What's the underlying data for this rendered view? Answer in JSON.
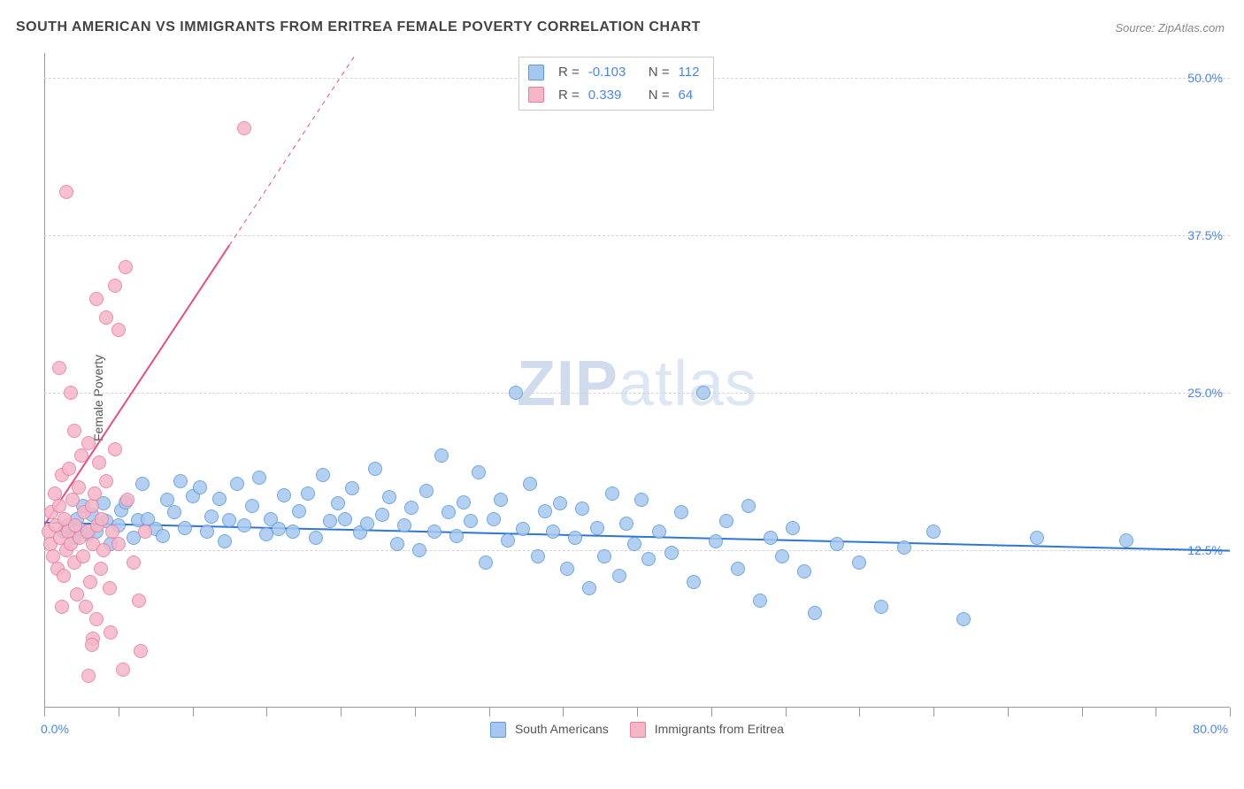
{
  "title": "SOUTH AMERICAN VS IMMIGRANTS FROM ERITREA FEMALE POVERTY CORRELATION CHART",
  "source": "Source: ZipAtlas.com",
  "ylabel": "Female Poverty",
  "watermark_zip": "ZIP",
  "watermark_atlas": "atlas",
  "chart": {
    "type": "scatter",
    "xlim": [
      0,
      80
    ],
    "ylim": [
      0,
      52
    ],
    "x_ticks": [
      0,
      5,
      10,
      15,
      20,
      25,
      30,
      35,
      40,
      45,
      50,
      55,
      60,
      65,
      70,
      75,
      80
    ],
    "y_gridlines": [
      12.5,
      25.0,
      37.5,
      50.0
    ],
    "y_tick_labels": [
      "12.5%",
      "25.0%",
      "37.5%",
      "50.0%"
    ],
    "x_min_label": "0.0%",
    "x_max_label": "80.0%",
    "background_color": "#ffffff",
    "grid_color": "#d5d5d5",
    "axis_color": "#999999",
    "tick_label_color": "#4a86e8",
    "marker_radius": 8,
    "marker_fill_opacity": 0.35,
    "series": [
      {
        "id": "south_americans",
        "label": "South Americans",
        "color_fill": "#a6c8f0",
        "color_stroke": "#5b9bd5",
        "trend": {
          "slope": -0.028,
          "intercept": 14.7,
          "color": "#2e75d6",
          "width": 2
        },
        "stats": {
          "R": "-0.103",
          "N": "112"
        },
        "points": [
          [
            1.3,
            14.0
          ],
          [
            1.6,
            14.5
          ],
          [
            2.0,
            13.5
          ],
          [
            2.2,
            15.0
          ],
          [
            2.4,
            14.2
          ],
          [
            2.6,
            16.0
          ],
          [
            3.0,
            13.8
          ],
          [
            3.2,
            15.3
          ],
          [
            3.5,
            14.0
          ],
          [
            4.0,
            16.2
          ],
          [
            4.2,
            14.8
          ],
          [
            4.5,
            13.0
          ],
          [
            5.0,
            14.5
          ],
          [
            5.2,
            15.7
          ],
          [
            5.5,
            16.3
          ],
          [
            6.0,
            13.5
          ],
          [
            6.3,
            14.9
          ],
          [
            6.6,
            17.8
          ],
          [
            7.0,
            15.0
          ],
          [
            7.5,
            14.2
          ],
          [
            8.0,
            13.6
          ],
          [
            8.3,
            16.5
          ],
          [
            8.8,
            15.5
          ],
          [
            9.2,
            18.0
          ],
          [
            9.5,
            14.3
          ],
          [
            10.0,
            16.8
          ],
          [
            10.5,
            17.5
          ],
          [
            11.0,
            14.0
          ],
          [
            11.3,
            15.2
          ],
          [
            11.8,
            16.6
          ],
          [
            12.2,
            13.2
          ],
          [
            12.5,
            14.9
          ],
          [
            13.0,
            17.8
          ],
          [
            13.5,
            14.5
          ],
          [
            14.0,
            16.0
          ],
          [
            14.5,
            18.3
          ],
          [
            15.0,
            13.8
          ],
          [
            15.3,
            15.0
          ],
          [
            15.8,
            14.2
          ],
          [
            16.2,
            16.9
          ],
          [
            16.8,
            14.0
          ],
          [
            17.2,
            15.6
          ],
          [
            17.8,
            17.0
          ],
          [
            18.3,
            13.5
          ],
          [
            18.8,
            18.5
          ],
          [
            19.3,
            14.8
          ],
          [
            19.8,
            16.2
          ],
          [
            20.3,
            15.0
          ],
          [
            20.8,
            17.4
          ],
          [
            21.3,
            13.9
          ],
          [
            21.8,
            14.6
          ],
          [
            22.3,
            19.0
          ],
          [
            22.8,
            15.3
          ],
          [
            23.3,
            16.7
          ],
          [
            23.8,
            13.0
          ],
          [
            24.3,
            14.5
          ],
          [
            24.8,
            15.9
          ],
          [
            25.3,
            12.5
          ],
          [
            25.8,
            17.2
          ],
          [
            26.3,
            14.0
          ],
          [
            26.8,
            20.0
          ],
          [
            27.3,
            15.5
          ],
          [
            27.8,
            13.6
          ],
          [
            28.3,
            16.3
          ],
          [
            28.8,
            14.8
          ],
          [
            29.3,
            18.7
          ],
          [
            29.8,
            11.5
          ],
          [
            30.3,
            15.0
          ],
          [
            30.8,
            16.5
          ],
          [
            31.3,
            13.3
          ],
          [
            31.8,
            25.0
          ],
          [
            32.3,
            14.2
          ],
          [
            32.8,
            17.8
          ],
          [
            33.3,
            12.0
          ],
          [
            33.8,
            15.6
          ],
          [
            34.3,
            14.0
          ],
          [
            34.8,
            16.2
          ],
          [
            35.3,
            11.0
          ],
          [
            35.8,
            13.5
          ],
          [
            36.3,
            15.8
          ],
          [
            36.8,
            9.5
          ],
          [
            37.3,
            14.3
          ],
          [
            37.8,
            12.0
          ],
          [
            38.3,
            17.0
          ],
          [
            38.8,
            10.5
          ],
          [
            39.3,
            14.6
          ],
          [
            39.8,
            13.0
          ],
          [
            40.3,
            16.5
          ],
          [
            40.8,
            11.8
          ],
          [
            41.5,
            14.0
          ],
          [
            42.3,
            12.3
          ],
          [
            43.0,
            15.5
          ],
          [
            43.8,
            10.0
          ],
          [
            44.5,
            25.0
          ],
          [
            45.3,
            13.2
          ],
          [
            46.0,
            14.8
          ],
          [
            46.8,
            11.0
          ],
          [
            47.5,
            16.0
          ],
          [
            48.3,
            8.5
          ],
          [
            49.0,
            13.5
          ],
          [
            49.8,
            12.0
          ],
          [
            50.5,
            14.3
          ],
          [
            51.3,
            10.8
          ],
          [
            52.0,
            7.5
          ],
          [
            53.5,
            13.0
          ],
          [
            55.0,
            11.5
          ],
          [
            56.5,
            8.0
          ],
          [
            58.0,
            12.7
          ],
          [
            60.0,
            14.0
          ],
          [
            62.0,
            7.0
          ],
          [
            67.0,
            13.5
          ],
          [
            73.0,
            13.3
          ]
        ]
      },
      {
        "id": "eritrea",
        "label": "Immigrants from Eritrea",
        "color_fill": "#f5b6c8",
        "color_stroke": "#e87ba0",
        "trend": {
          "slope": 1.78,
          "intercept": 14.5,
          "color": "#e84d84",
          "width": 2,
          "dash_after_x": 12.5
        },
        "stats": {
          "R": "0.339",
          "N": "64"
        },
        "points": [
          [
            0.3,
            14.0
          ],
          [
            0.4,
            13.0
          ],
          [
            0.5,
            15.5
          ],
          [
            0.6,
            12.0
          ],
          [
            0.7,
            17.0
          ],
          [
            0.8,
            14.5
          ],
          [
            0.9,
            11.0
          ],
          [
            1.0,
            16.0
          ],
          [
            1.1,
            13.5
          ],
          [
            1.2,
            18.5
          ],
          [
            1.3,
            10.5
          ],
          [
            1.4,
            15.0
          ],
          [
            1.5,
            12.5
          ],
          [
            1.6,
            14.0
          ],
          [
            1.7,
            19.0
          ],
          [
            1.8,
            13.0
          ],
          [
            1.9,
            16.5
          ],
          [
            2.0,
            11.5
          ],
          [
            2.1,
            14.5
          ],
          [
            2.2,
            9.0
          ],
          [
            2.3,
            17.5
          ],
          [
            2.4,
            13.5
          ],
          [
            2.5,
            20.0
          ],
          [
            2.6,
            12.0
          ],
          [
            2.7,
            15.5
          ],
          [
            2.8,
            8.0
          ],
          [
            2.9,
            14.0
          ],
          [
            3.0,
            21.0
          ],
          [
            3.1,
            10.0
          ],
          [
            3.2,
            16.0
          ],
          [
            3.3,
            13.0
          ],
          [
            3.4,
            17.0
          ],
          [
            3.5,
            7.0
          ],
          [
            3.6,
            14.5
          ],
          [
            3.7,
            19.5
          ],
          [
            3.8,
            11.0
          ],
          [
            3.9,
            15.0
          ],
          [
            4.0,
            12.5
          ],
          [
            4.2,
            18.0
          ],
          [
            4.4,
            9.5
          ],
          [
            4.6,
            14.0
          ],
          [
            4.8,
            20.5
          ],
          [
            5.0,
            13.0
          ],
          [
            5.3,
            3.0
          ],
          [
            5.6,
            16.5
          ],
          [
            6.0,
            11.5
          ],
          [
            6.4,
            8.5
          ],
          [
            6.8,
            14.0
          ],
          [
            1.0,
            27.0
          ],
          [
            1.8,
            25.0
          ],
          [
            3.3,
            5.5
          ],
          [
            4.5,
            6.0
          ],
          [
            3.0,
            2.5
          ],
          [
            6.5,
            4.5
          ],
          [
            2.0,
            22.0
          ],
          [
            3.5,
            32.5
          ],
          [
            4.2,
            31.0
          ],
          [
            5.0,
            30.0
          ],
          [
            4.8,
            33.5
          ],
          [
            5.5,
            35.0
          ],
          [
            1.5,
            41.0
          ],
          [
            3.2,
            5.0
          ],
          [
            13.5,
            46.0
          ],
          [
            1.2,
            8.0
          ]
        ]
      }
    ],
    "stats_box": {
      "r_label": "R =",
      "n_label": "N ="
    },
    "legend_bottom_labels": {
      "series1": "South Americans",
      "series2": "Immigrants from Eritrea"
    }
  }
}
